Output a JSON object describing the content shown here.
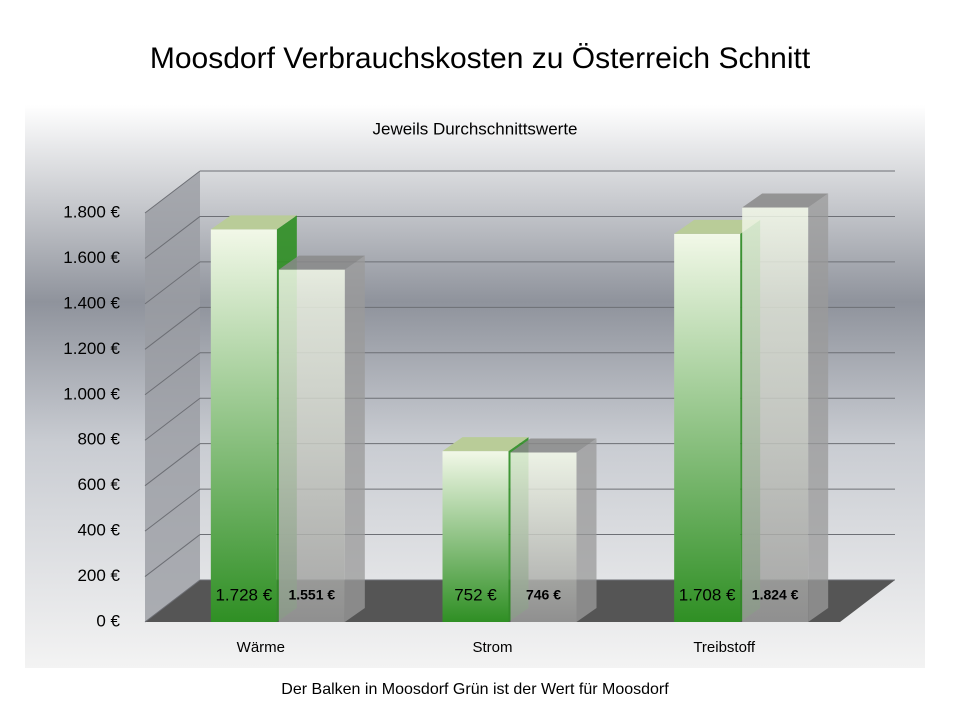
{
  "chart_data": {
    "type": "bar3d",
    "title": "Moosdorf  Verbrauchskosten zu Österreich Schnitt",
    "subtitle": "Jeweils Durchschnittswerte",
    "caption": "Der Balken in Moosdorf Grün ist der Wert für Moosdorf",
    "categories": [
      "Wärme",
      "Strom",
      "Treibstoff"
    ],
    "series": [
      {
        "color": "#2f8f24",
        "values": [
          1728,
          752,
          1708
        ],
        "value_labels": [
          "1.728 €",
          "752 €",
          "1.708 €"
        ]
      },
      {
        "color": "#9a9a9a",
        "values": [
          1551,
          746,
          1824
        ],
        "value_labels": [
          "1.551 €",
          "746 €",
          "1.824 €"
        ]
      }
    ],
    "ylim": [
      0,
      1800
    ],
    "yticks": [
      {
        "value": 0,
        "label": "0 €"
      },
      {
        "value": 200,
        "label": "200 €"
      },
      {
        "value": 400,
        "label": "400 €"
      },
      {
        "value": 600,
        "label": "600 €"
      },
      {
        "value": 800,
        "label": "800 €"
      },
      {
        "value": 1000,
        "label": "1.000 €"
      },
      {
        "value": 1200,
        "label": "1.200 €"
      },
      {
        "value": 1400,
        "label": "1.400 €"
      },
      {
        "value": 1600,
        "label": "1.600 €"
      },
      {
        "value": 1800,
        "label": "1.800 €"
      }
    ],
    "grid": true
  }
}
